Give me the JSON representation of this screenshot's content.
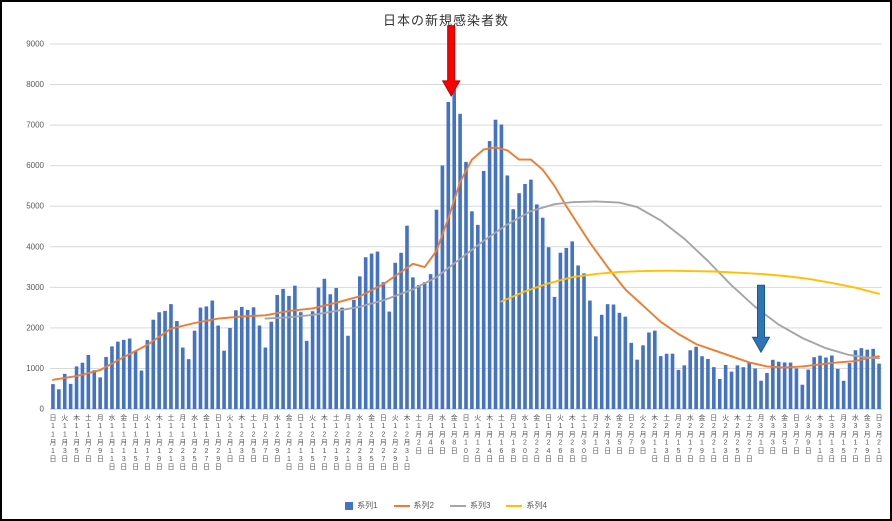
{
  "chart_data": {
    "type": "bar",
    "title": "日本の新規感染者数",
    "xlabel": "",
    "ylabel": "",
    "ylim": [
      0,
      9000
    ],
    "ytick_step": 1000,
    "grid": true,
    "legend_position": "bottom",
    "bar_color": "#4472C4",
    "gridline_color": "#D9D9D9",
    "axis_line_color": "#BFBFBF",
    "axis_text_color": "#595959",
    "x_start_date": "11月1日",
    "x_end_date": "3月21日",
    "x_tick_labels": [
      "日11月1日",
      "火11月3日",
      "木11月5日",
      "土11月7日",
      "月11月9日",
      "水11月11日",
      "金11月13日",
      "日11月15日",
      "火11月17日",
      "木11月19日",
      "土11月21日",
      "月11月23日",
      "水11月25日",
      "金11月27日",
      "日11月29日",
      "火12月1日",
      "木12月3日",
      "土12月5日",
      "月12月7日",
      "水12月9日",
      "金12月11日",
      "日12月13日",
      "火12月15日",
      "木12月17日",
      "土12月19日",
      "月12月21日",
      "水12月23日",
      "金12月25日",
      "日12月27日",
      "火12月29日",
      "木12月31日",
      "土1月2日",
      "月1月4日",
      "水1月6日",
      "金1月8日",
      "日1月10日",
      "火1月12日",
      "木1月14日",
      "土1月16日",
      "月1月18日",
      "水1月20日",
      "金1月22日",
      "日1月24日",
      "火1月26日",
      "木1月28日",
      "土1月30日",
      "月2月1日",
      "水2月3日",
      "金2月5日",
      "日2月7日",
      "火2月9日",
      "木2月11日",
      "土2月13日",
      "月2月15日",
      "水2月17日",
      "金2月19日",
      "日2月21日",
      "火2月23日",
      "木2月25日",
      "土2月27日",
      "月3月1日",
      "水3月3日",
      "金3月5日",
      "日3月7日",
      "火3月9日",
      "木3月11日",
      "土3月13日",
      "月3月15日",
      "水3月17日",
      "金3月19日",
      "日3月21日"
    ],
    "bar_series_name": "系列1",
    "bars": [
      614,
      486,
      867,
      620,
      1050,
      1141,
      1331,
      957,
      780,
      1284,
      1543,
      1661,
      1704,
      1737,
      1441,
      948,
      1699,
      2201,
      2386,
      2418,
      2586,
      2168,
      1515,
      1229,
      1930,
      2501,
      2529,
      2674,
      2058,
      1438,
      1998,
      2434,
      2518,
      2442,
      2508,
      2058,
      1515,
      2152,
      2811,
      2962,
      2788,
      3041,
      2387,
      1680,
      2410,
      2994,
      3211,
      2829,
      2982,
      2501,
      1806,
      2688,
      3271,
      3742,
      3832,
      3881,
      3127,
      2402,
      3606,
      3852,
      4520,
      3246,
      3057,
      3127,
      3325,
      4915,
      6004,
      7570,
      7882,
      7278,
      6093,
      4875,
      4540,
      5870,
      6607,
      7133,
      7014,
      5759,
      4925,
      5321,
      5549,
      5656,
      5045,
      4717,
      3989,
      2764,
      3853,
      3971,
      4133,
      3539,
      3344,
      2673,
      1792,
      2324,
      2585,
      2576,
      2372,
      2277,
      1631,
      1216,
      1570,
      1887,
      1933,
      1304,
      1362,
      1364,
      965,
      1076,
      1448,
      1536,
      1301,
      1234,
      1032,
      739,
      1085,
      922,
      1076,
      1031,
      1148,
      999,
      697,
      888,
      1213,
      1165,
      1148,
      1144,
      1001,
      599,
      972,
      1277,
      1316,
      1271,
      1320,
      989,
      695,
      1131,
      1449,
      1501,
      1463,
      1484,
      1118
    ],
    "line_series": [
      {
        "name": "系列2",
        "color": "#ED7D31",
        "points": [
          [
            0,
            720
          ],
          [
            4,
            810
          ],
          [
            8,
            960
          ],
          [
            12,
            1280
          ],
          [
            16,
            1580
          ],
          [
            20,
            1980
          ],
          [
            24,
            2120
          ],
          [
            28,
            2230
          ],
          [
            32,
            2280
          ],
          [
            36,
            2310
          ],
          [
            40,
            2420
          ],
          [
            44,
            2480
          ],
          [
            48,
            2620
          ],
          [
            52,
            2780
          ],
          [
            56,
            3080
          ],
          [
            59,
            3380
          ],
          [
            61,
            3580
          ],
          [
            63,
            3500
          ],
          [
            65,
            3900
          ],
          [
            67,
            4700
          ],
          [
            69,
            5600
          ],
          [
            71,
            6150
          ],
          [
            73,
            6400
          ],
          [
            75,
            6450
          ],
          [
            77,
            6380
          ],
          [
            79,
            6150
          ],
          [
            81,
            6150
          ],
          [
            83,
            5900
          ],
          [
            85,
            5500
          ],
          [
            87,
            5000
          ],
          [
            89,
            4550
          ],
          [
            91,
            4100
          ],
          [
            94,
            3500
          ],
          [
            97,
            2950
          ],
          [
            100,
            2550
          ],
          [
            103,
            2150
          ],
          [
            106,
            1850
          ],
          [
            109,
            1600
          ],
          [
            112,
            1450
          ],
          [
            115,
            1300
          ],
          [
            118,
            1150
          ],
          [
            121,
            1050
          ],
          [
            124,
            1020
          ],
          [
            127,
            1050
          ],
          [
            130,
            1100
          ],
          [
            133,
            1150
          ],
          [
            136,
            1180
          ],
          [
            139,
            1280
          ],
          [
            140,
            1300
          ]
        ]
      },
      {
        "name": "系列3",
        "color": "#A5A5A5",
        "points": [
          [
            36,
            2230
          ],
          [
            40,
            2260
          ],
          [
            44,
            2320
          ],
          [
            48,
            2420
          ],
          [
            52,
            2520
          ],
          [
            56,
            2680
          ],
          [
            61,
            2950
          ],
          [
            65,
            3250
          ],
          [
            69,
            3700
          ],
          [
            73,
            4150
          ],
          [
            77,
            4550
          ],
          [
            81,
            4880
          ],
          [
            85,
            5050
          ],
          [
            88,
            5100
          ],
          [
            92,
            5120
          ],
          [
            96,
            5090
          ],
          [
            99,
            4980
          ],
          [
            103,
            4650
          ],
          [
            107,
            4200
          ],
          [
            111,
            3650
          ],
          [
            115,
            3050
          ],
          [
            119,
            2520
          ],
          [
            123,
            2080
          ],
          [
            127,
            1750
          ],
          [
            131,
            1500
          ],
          [
            135,
            1330
          ],
          [
            138,
            1270
          ],
          [
            140,
            1250
          ]
        ]
      },
      {
        "name": "系列4",
        "color": "#FFC000",
        "points": [
          [
            76,
            2650
          ],
          [
            80,
            2900
          ],
          [
            84,
            3100
          ],
          [
            88,
            3250
          ],
          [
            92,
            3330
          ],
          [
            96,
            3380
          ],
          [
            100,
            3400
          ],
          [
            104,
            3410
          ],
          [
            108,
            3400
          ],
          [
            112,
            3390
          ],
          [
            116,
            3360
          ],
          [
            120,
            3330
          ],
          [
            124,
            3280
          ],
          [
            128,
            3210
          ],
          [
            132,
            3110
          ],
          [
            136,
            2990
          ],
          [
            140,
            2840
          ]
        ]
      }
    ],
    "annotations": [
      {
        "type": "down-arrow",
        "target_date": "1月8日",
        "day_index": 67.5,
        "from_value": 9450,
        "to_value": 7720,
        "color": "#FF0000",
        "stroke": "#B00000"
      },
      {
        "type": "down-arrow",
        "target_date": "3月1日",
        "day_index": 120,
        "from_value": 3050,
        "to_value": 1400,
        "color": "#2E75B6",
        "stroke": "#1F5597"
      }
    ],
    "legend": [
      {
        "label": "系列1",
        "swatch": "bar",
        "color": "#4472C4"
      },
      {
        "label": "系列2",
        "swatch": "line",
        "color": "#ED7D31"
      },
      {
        "label": "系列3",
        "swatch": "line",
        "color": "#A5A5A5"
      },
      {
        "label": "系列4",
        "swatch": "line",
        "color": "#FFC000"
      }
    ]
  }
}
